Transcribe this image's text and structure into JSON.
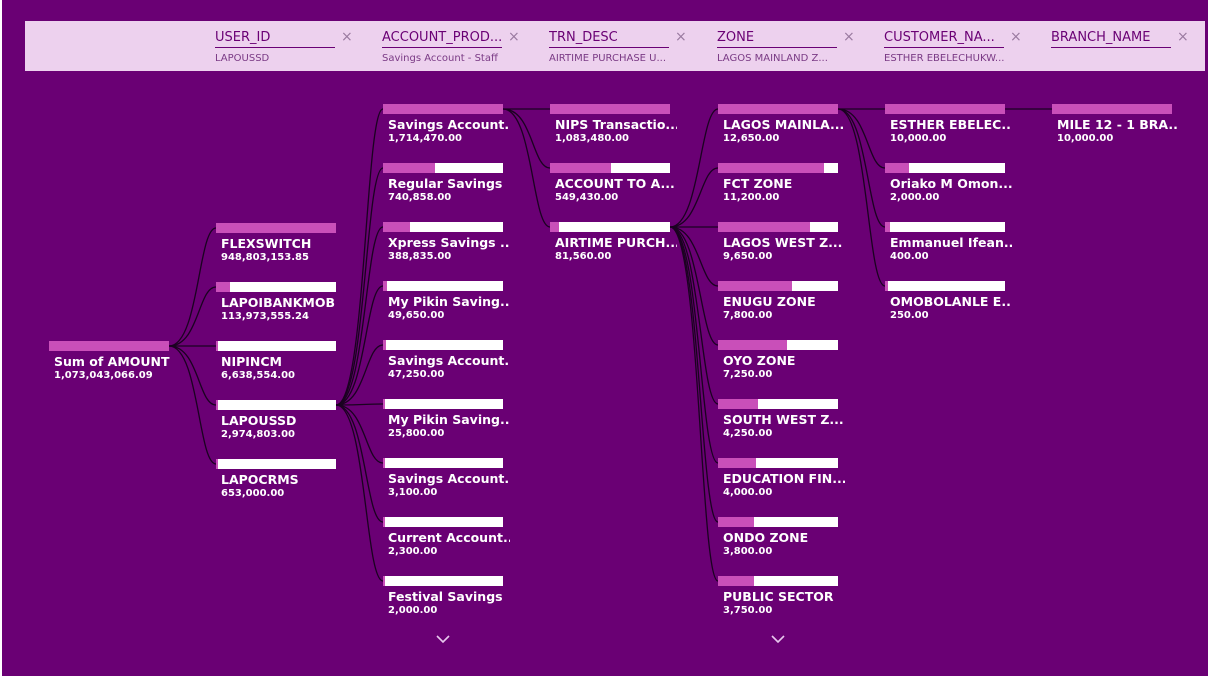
{
  "colors": {
    "background": "#6a0074",
    "header": "#edd1ee",
    "bar": "#ffffff",
    "bar_fill": "#c94fb9"
  },
  "header": [
    {
      "name": "USER_ID",
      "value": "LAPOUSSD"
    },
    {
      "name": "ACCOUNT_PROD...",
      "value": "Savings Account - Staff"
    },
    {
      "name": "TRN_DESC",
      "value": "AIRTIME PURCHASE U..."
    },
    {
      "name": "ZONE",
      "value": "LAGOS MAINLAND Z..."
    },
    {
      "name": "CUSTOMER_NA...",
      "value": "ESTHER EBELECHUKW..."
    },
    {
      "name": "BRANCH_NAME",
      "value": ""
    }
  ],
  "columns": [
    {
      "nodes": [
        {
          "label": "Sum of AMOUNT",
          "value": "1,073,043,066.09",
          "fraction": 1.0
        }
      ]
    },
    {
      "nodes": [
        {
          "label": "FLEXSWITCH",
          "value": "948,803,153.85",
          "fraction": 1.0
        },
        {
          "label": "LAPOIBANKMOB",
          "value": "113,973,555.24",
          "fraction": 0.12
        },
        {
          "label": "NIPINCM",
          "value": "6,638,554.00",
          "fraction": 0.007
        },
        {
          "label": "LAPOUSSD",
          "value": "2,974,803.00",
          "fraction": 0.003
        },
        {
          "label": "LAPOCRMS",
          "value": "653,000.00",
          "fraction": 0.001
        }
      ]
    },
    {
      "nodes": [
        {
          "label": "Savings Account...",
          "value": "1,714,470.00",
          "fraction": 1.0
        },
        {
          "label": "Regular Savings",
          "value": "740,858.00",
          "fraction": 0.432
        },
        {
          "label": "Xpress Savings ...",
          "value": "388,835.00",
          "fraction": 0.227
        },
        {
          "label": "My Pikin Saving...",
          "value": "49,650.00",
          "fraction": 0.029
        },
        {
          "label": "Savings Account...",
          "value": "47,250.00",
          "fraction": 0.028
        },
        {
          "label": "My Pikin Saving...",
          "value": "25,800.00",
          "fraction": 0.015
        },
        {
          "label": "Savings Account...",
          "value": "3,100.00",
          "fraction": 0.002
        },
        {
          "label": "Current Account...",
          "value": "2,300.00",
          "fraction": 0.001
        },
        {
          "label": "Festival Savings",
          "value": "2,000.00",
          "fraction": 0.001
        }
      ]
    },
    {
      "nodes": [
        {
          "label": "NIPS Transactio...",
          "value": "1,083,480.00",
          "fraction": 1.0
        },
        {
          "label": "ACCOUNT TO A...",
          "value": "549,430.00",
          "fraction": 0.507
        },
        {
          "label": "AIRTIME PURCH...",
          "value": "81,560.00",
          "fraction": 0.075
        }
      ]
    },
    {
      "nodes": [
        {
          "label": "LAGOS MAINLA...",
          "value": "12,650.00",
          "fraction": 1.0
        },
        {
          "label": "FCT ZONE",
          "value": "11,200.00",
          "fraction": 0.885
        },
        {
          "label": "LAGOS WEST Z...",
          "value": "9,650.00",
          "fraction": 0.763
        },
        {
          "label": "ENUGU ZONE",
          "value": "7,800.00",
          "fraction": 0.617
        },
        {
          "label": "OYO ZONE",
          "value": "7,250.00",
          "fraction": 0.573
        },
        {
          "label": "SOUTH WEST Z...",
          "value": "4,250.00",
          "fraction": 0.336
        },
        {
          "label": "EDUCATION FIN...",
          "value": "4,000.00",
          "fraction": 0.316
        },
        {
          "label": "ONDO ZONE",
          "value": "3,800.00",
          "fraction": 0.3
        },
        {
          "label": "PUBLIC SECTOR",
          "value": "3,750.00",
          "fraction": 0.296
        }
      ]
    },
    {
      "nodes": [
        {
          "label": "ESTHER EBELEC...",
          "value": "10,000.00",
          "fraction": 1.0
        },
        {
          "label": "Oriako M Omon...",
          "value": "2,000.00",
          "fraction": 0.2
        },
        {
          "label": "Emmanuel Ifean...",
          "value": "400.00",
          "fraction": 0.04
        },
        {
          "label": "OMOBOLANLE E...",
          "value": "250.00",
          "fraction": 0.025
        }
      ]
    },
    {
      "nodes": [
        {
          "label": "MILE 12 - 1 BRA...",
          "value": "10,000.00",
          "fraction": 1.0
        }
      ]
    }
  ],
  "expanded": [
    0,
    3,
    0,
    2,
    0,
    0
  ],
  "more_below": [
    false,
    false,
    true,
    false,
    true,
    false,
    false
  ]
}
